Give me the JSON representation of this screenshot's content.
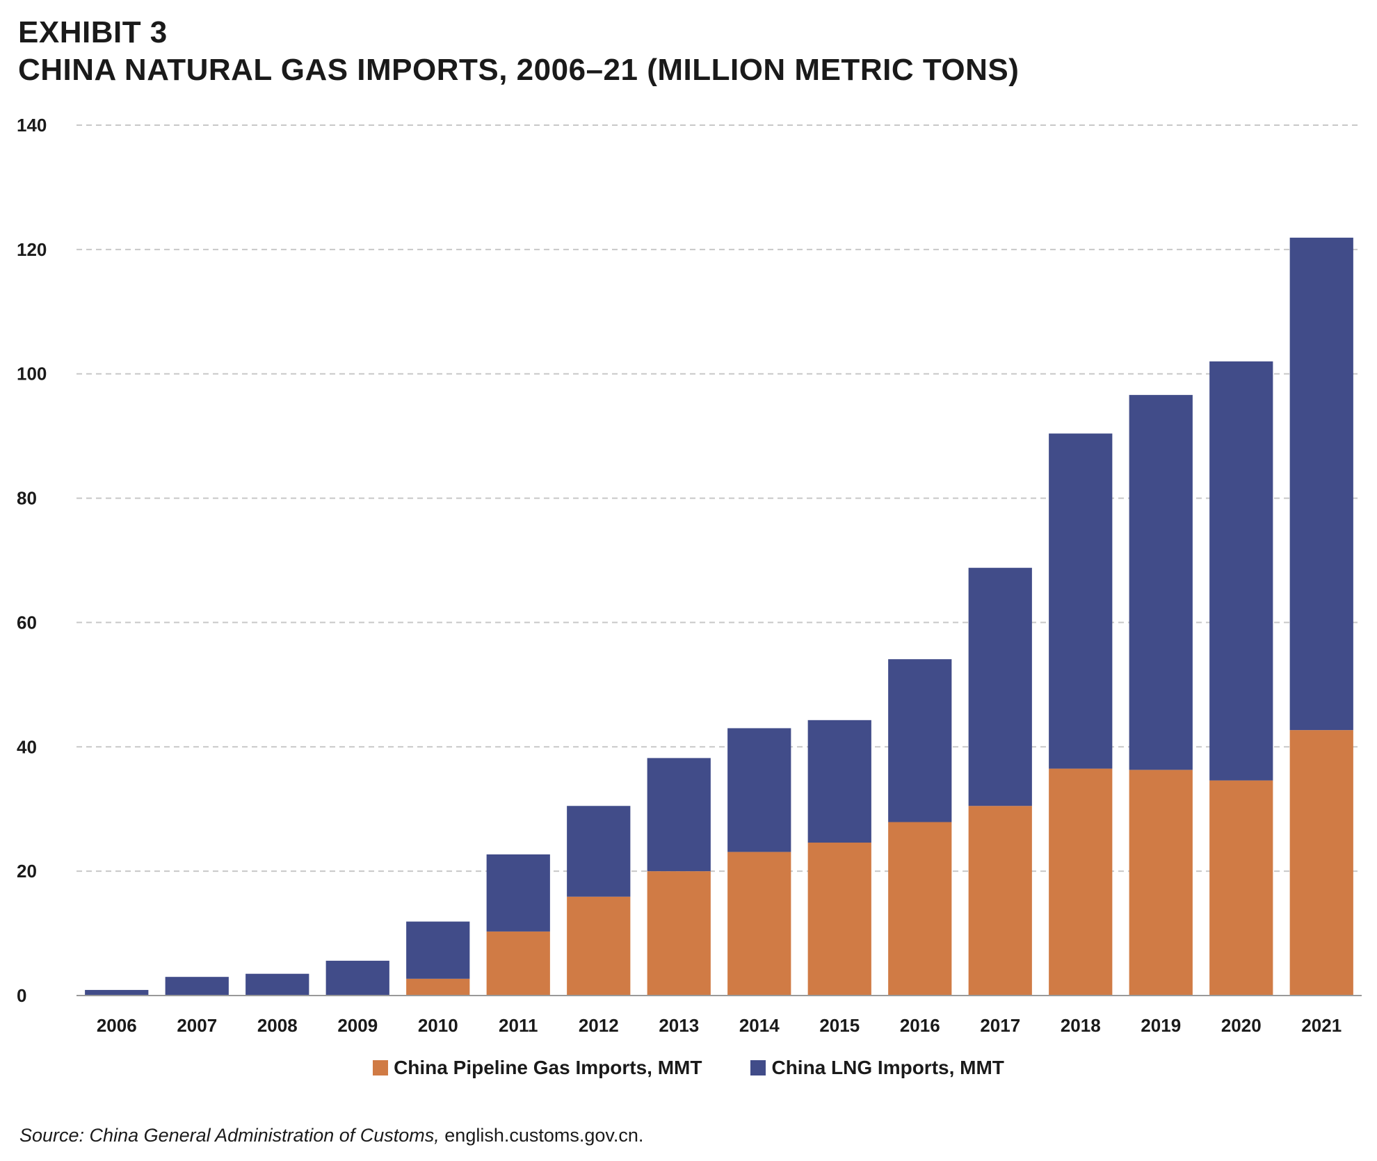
{
  "header": {
    "exhibit": "EXHIBIT 3",
    "title": "CHINA NATURAL GAS IMPORTS, 2006–21 (MILLION METRIC TONS)"
  },
  "colors": {
    "pipeline": "#d07b45",
    "lng": "#414c89",
    "grid": "#c8c8c8",
    "axis": "#999999"
  },
  "legend": {
    "pipeline_label": "China Pipeline Gas Imports, MMT",
    "lng_label": "China LNG Imports, MMT"
  },
  "source": {
    "prefix_italic": "Source: China General Administration of Customs,",
    "suffix": " english.customs.gov.cn."
  },
  "chart_data": {
    "type": "bar",
    "stacked": true,
    "title": "CHINA NATURAL GAS IMPORTS, 2006–21 (MILLION METRIC TONS)",
    "categories": [
      "2006",
      "2007",
      "2008",
      "2009",
      "2010",
      "2011",
      "2012",
      "2013",
      "2014",
      "2015",
      "2016",
      "2017",
      "2018",
      "2019",
      "2020",
      "2021"
    ],
    "series": [
      {
        "name": "China Pipeline Gas Imports, MMT",
        "values": [
          0,
          0,
          0,
          0,
          2.7,
          10.3,
          15.9,
          20.0,
          23.1,
          24.6,
          27.9,
          30.5,
          36.5,
          36.3,
          34.6,
          42.7
        ]
      },
      {
        "name": "China LNG Imports, MMT",
        "values": [
          0.9,
          3.0,
          3.5,
          5.6,
          9.2,
          12.4,
          14.6,
          18.2,
          19.9,
          19.7,
          26.2,
          38.3,
          53.9,
          60.3,
          67.4,
          79.2
        ]
      }
    ],
    "ylim": [
      0,
      140
    ],
    "yticks": [
      0,
      20,
      40,
      60,
      80,
      100,
      120,
      140
    ],
    "grid": true,
    "legend_position": "bottom"
  }
}
